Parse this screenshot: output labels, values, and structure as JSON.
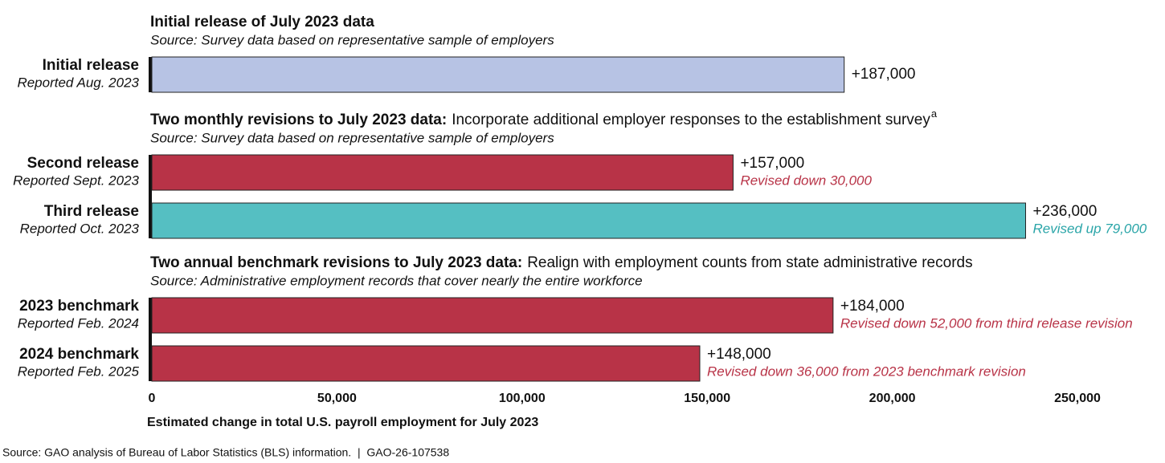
{
  "chart_data": {
    "type": "bar",
    "orientation": "horizontal",
    "sections": [
      {
        "title": "Initial release of July 2023 data",
        "source": "Source: Survey data based on representative sample of employers",
        "categories": [
          "Initial release"
        ],
        "subcategories": [
          "Reported Aug. 2023"
        ],
        "values": [
          187000
        ],
        "value_labels": [
          "+187,000"
        ],
        "colors": [
          "#b7c3e4"
        ],
        "annotations": [
          null
        ],
        "annotation_colors": [
          null
        ]
      },
      {
        "title": "Two monthly revisions to July 2023 data:",
        "description": "Incorporate additional employer responses to the establishment survey",
        "footnote": "a",
        "source": "Source: Survey data based on representative sample of employers",
        "categories": [
          "Second release",
          "Third release"
        ],
        "subcategories": [
          "Reported Sept. 2023",
          "Reported Oct. 2023"
        ],
        "values": [
          157000,
          236000
        ],
        "value_labels": [
          "+157,000",
          "+236,000"
        ],
        "colors": [
          "#b83347",
          "#55bfc2"
        ],
        "annotations": [
          "Revised down 30,000",
          "Revised up 79,000"
        ],
        "annotation_colors": [
          "#b83347",
          "#2aa5a8"
        ]
      },
      {
        "title": "Two annual benchmark revisions to July 2023 data:",
        "description": "Realign with employment counts from state administrative records",
        "source": "Source: Administrative employment records that cover nearly the entire workforce",
        "categories": [
          "2023 benchmark",
          "2024 benchmark"
        ],
        "subcategories": [
          "Reported Feb. 2024",
          "Reported Feb. 2025"
        ],
        "values": [
          184000,
          148000
        ],
        "value_labels": [
          "+184,000",
          "+148,000"
        ],
        "colors": [
          "#b83347",
          "#b83347"
        ],
        "annotations": [
          "Revised down 52,000 from third release revision",
          "Revised down 36,000 from 2023 benchmark revision"
        ],
        "annotation_colors": [
          "#b83347",
          "#b83347"
        ]
      }
    ],
    "xlim": [
      0,
      250000
    ],
    "xticks": [
      0,
      {
        "value": 50000,
        "label": "50,000"
      },
      {
        "value": 100000,
        "label": "100,000"
      },
      {
        "value": 150000,
        "label": "150,000"
      },
      {
        "value": 200000,
        "label": "200,000"
      },
      {
        "value": 250000,
        "label": "250,000"
      }
    ],
    "xlabel": "Estimated change in total U.S. payroll employment for July 2023",
    "footer": "Source: GAO analysis of Bureau of Labor Statistics (BLS) information.  |  GAO-26-107538"
  }
}
